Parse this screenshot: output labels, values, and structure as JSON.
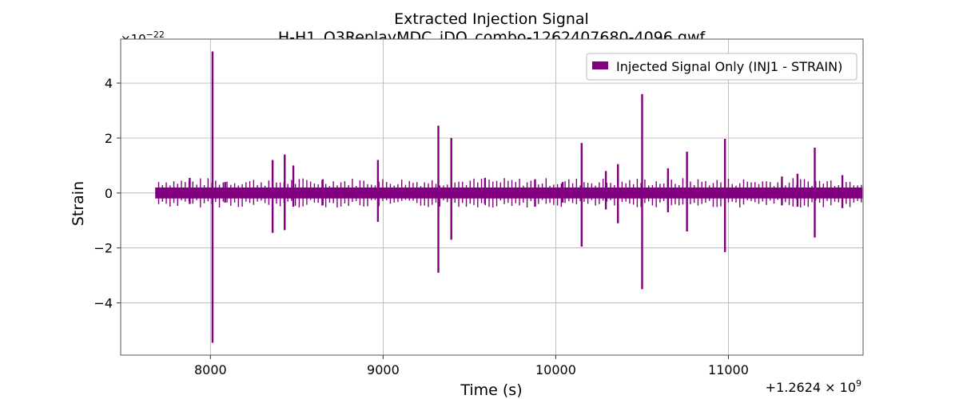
{
  "chart_data": {
    "type": "line",
    "title": "Extracted Injection Signal",
    "subtitle": "H-H1_O3ReplayMDC_iDQ_combo-1262407680-4096.gwf",
    "xlabel": "Time (s)",
    "ylabel": "Strain",
    "x_offset_label": "+1.2624 × 10",
    "x_offset_exponent": "9",
    "y_scale_label": "×10",
    "y_scale_exponent": "−22",
    "xlim": [
      7480,
      11780
    ],
    "ylim": [
      -5.9,
      5.6
    ],
    "x_ticks": [
      8000,
      9000,
      10000,
      11000
    ],
    "x_tick_labels": [
      "8000",
      "9000",
      "10000",
      "11000"
    ],
    "y_ticks": [
      -4,
      -2,
      0,
      2,
      4
    ],
    "y_tick_labels": [
      "−4",
      "−2",
      "0",
      "2",
      "4"
    ],
    "grid": true,
    "legend_position": "top-right",
    "series": [
      {
        "name": "Injected Signal Only (INJ1 - STRAIN)",
        "color": "#800080",
        "x_range": [
          7680,
          11776
        ],
        "baseline_band": [
          -0.2,
          0.2
        ],
        "spikes": [
          {
            "x": 8012,
            "y_max": 5.15,
            "y_min": -5.45
          },
          {
            "x": 9320,
            "y_max": 2.45,
            "y_min": -2.9
          },
          {
            "x": 9395,
            "y_max": 2.0,
            "y_min": -1.7
          },
          {
            "x": 10150,
            "y_max": 1.82,
            "y_min": -1.95
          },
          {
            "x": 10500,
            "y_max": 3.6,
            "y_min": -3.5
          },
          {
            "x": 10980,
            "y_max": 1.97,
            "y_min": -2.15
          },
          {
            "x": 11500,
            "y_max": 1.65,
            "y_min": -1.62
          },
          {
            "x": 8360,
            "y_max": 1.2,
            "y_min": -1.45
          },
          {
            "x": 8430,
            "y_max": 1.4,
            "y_min": -1.35
          },
          {
            "x": 8970,
            "y_max": 1.2,
            "y_min": -1.05
          },
          {
            "x": 10360,
            "y_max": 1.05,
            "y_min": -1.1
          },
          {
            "x": 10760,
            "y_max": 1.5,
            "y_min": -1.4
          },
          {
            "x": 10650,
            "y_max": 0.9,
            "y_min": -0.7
          },
          {
            "x": 7880,
            "y_max": 0.55,
            "y_min": -0.4
          },
          {
            "x": 8085,
            "y_max": 0.4,
            "y_min": -0.35
          },
          {
            "x": 8480,
            "y_max": 1.0,
            "y_min": -0.5
          },
          {
            "x": 8650,
            "y_max": 0.5,
            "y_min": -0.45
          },
          {
            "x": 9590,
            "y_max": 0.55,
            "y_min": -0.4
          },
          {
            "x": 9880,
            "y_max": 0.5,
            "y_min": -0.5
          },
          {
            "x": 10040,
            "y_max": 0.4,
            "y_min": -0.35
          },
          {
            "x": 10290,
            "y_max": 0.8,
            "y_min": -0.6
          },
          {
            "x": 11310,
            "y_max": 0.6,
            "y_min": -0.45
          },
          {
            "x": 11400,
            "y_max": 0.7,
            "y_min": -0.5
          },
          {
            "x": 11660,
            "y_max": 0.65,
            "y_min": -0.55
          }
        ]
      }
    ]
  }
}
